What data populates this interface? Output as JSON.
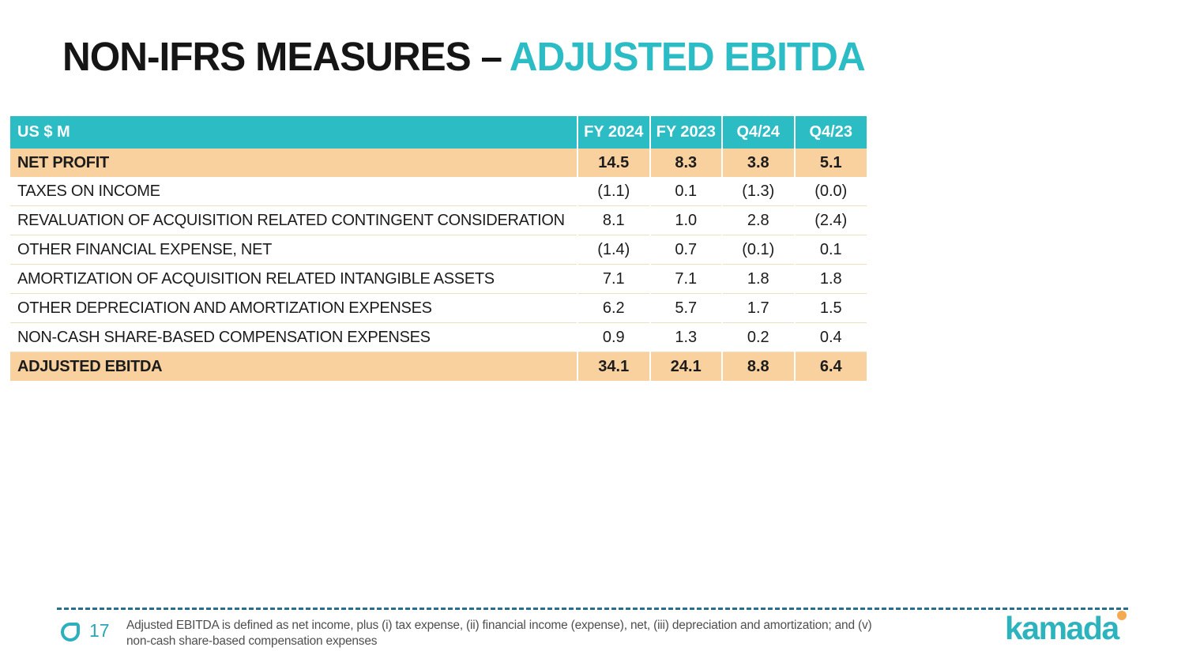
{
  "title": {
    "prefix": "NON-IFRS MEASURES –",
    "highlight": "ADJUSTED EBITDA"
  },
  "table": {
    "unit_label": "US $ M",
    "columns": [
      "FY 2024",
      "FY 2023",
      "Q4/24",
      "Q4/23"
    ],
    "rows": [
      {
        "label": "NET PROFIT",
        "values": [
          "14.5",
          "8.3",
          "3.8",
          "5.1"
        ],
        "emphasis": true
      },
      {
        "label": "TAXES ON INCOME",
        "values": [
          "(1.1)",
          "0.1",
          "(1.3)",
          "(0.0)"
        ],
        "emphasis": false
      },
      {
        "label": "REVALUATION OF ACQUISITION RELATED CONTINGENT CONSIDERATION",
        "values": [
          "8.1",
          "1.0",
          "2.8",
          "(2.4)"
        ],
        "emphasis": false
      },
      {
        "label": "OTHER FINANCIAL EXPENSE, NET",
        "values": [
          "(1.4)",
          "0.7",
          "(0.1)",
          "0.1"
        ],
        "emphasis": false
      },
      {
        "label": "AMORTIZATION OF ACQUISITION RELATED INTANGIBLE ASSETS",
        "values": [
          "7.1",
          "7.1",
          "1.8",
          "1.8"
        ],
        "emphasis": false
      },
      {
        "label": "OTHER DEPRECIATION AND AMORTIZATION EXPENSES",
        "values": [
          "6.2",
          "5.7",
          "1.7",
          "1.5"
        ],
        "emphasis": false
      },
      {
        "label": "NON-CASH SHARE-BASED COMPENSATION EXPENSES",
        "values": [
          "0.9",
          "1.3",
          "0.2",
          "0.4"
        ],
        "emphasis": false
      },
      {
        "label": "ADJUSTED EBITDA",
        "values": [
          "34.1",
          "24.1",
          "8.8",
          "6.4"
        ],
        "emphasis": true
      }
    ]
  },
  "footer": {
    "page_number": "17",
    "footnote_lines": [
      "Adjusted EBITDA is defined as net income, plus (i) tax expense, (ii) financial income (expense), net, (iii) depreciation and amortization; and (v)",
      "non-cash share-based compensation expenses"
    ],
    "logo_text": "kamada",
    "drop_icon": "kamada-drop-icon"
  },
  "colors": {
    "header_teal": "#2bbcc4",
    "row_highlight_tan": "#f8d19e",
    "title_accent_teal": "#2bbcc6",
    "divider_dash_blue": "#276f90",
    "logo_teal": "#2cb3bd",
    "logo_dot_orange": "#f3aa52",
    "page_number_teal": "#2aa6b5"
  }
}
